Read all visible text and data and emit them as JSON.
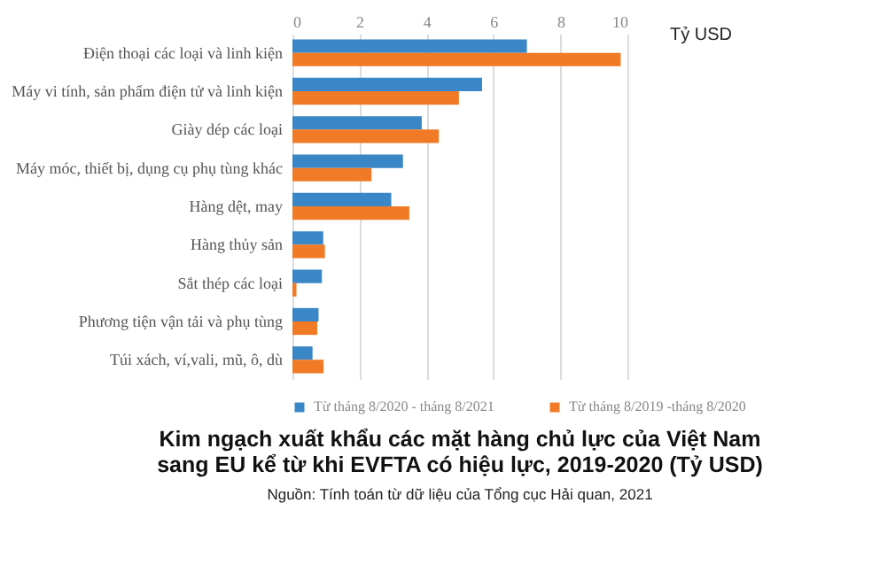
{
  "chart_data": {
    "type": "bar",
    "orientation": "horizontal",
    "title": "Kim ngạch xuất khẩu các mặt hàng chủ lực của Việt Nam sang EU kể từ khi EVFTA có hiệu lực, 2019-2020 (Tỷ USD)",
    "xlabel": "Tỷ USD",
    "annotations": [
      "Nguồn: Tính toán từ dữ liệu của Tổng cục Hải quan, 2021"
    ],
    "categories": [
      "Điện thoại các loại và linh kiện",
      "Máy vi tính, sản phẩm điện tử và linh kiện",
      "Giày dép các loại",
      "Máy móc, thiết bị, dụng cụ phụ tùng khác",
      "Hàng dệt, may",
      "Hàng thủy sản",
      "Sắt thép các loại",
      "Phương tiện vận tải và phụ tùng",
      "Túi xách, ví,vali, mũ, ô, dù"
    ],
    "series": [
      {
        "name": "Từ tháng 8/2020 - tháng 8/2021",
        "color": "#3a87c8",
        "values": [
          7.0,
          5.66,
          3.86,
          3.3,
          2.95,
          0.92,
          0.88,
          0.78,
          0.6
        ]
      },
      {
        "name": "Từ tháng 8/2019 -tháng 8/2020",
        "color": "#f07a26",
        "values": [
          9.8,
          4.97,
          4.37,
          2.36,
          3.49,
          0.97,
          0.12,
          0.74,
          0.93
        ]
      }
    ],
    "xlim": [
      0,
      10
    ],
    "xticks": [
      0,
      2,
      4,
      6,
      8,
      10
    ],
    "grid": "x",
    "legend": "bottom"
  }
}
